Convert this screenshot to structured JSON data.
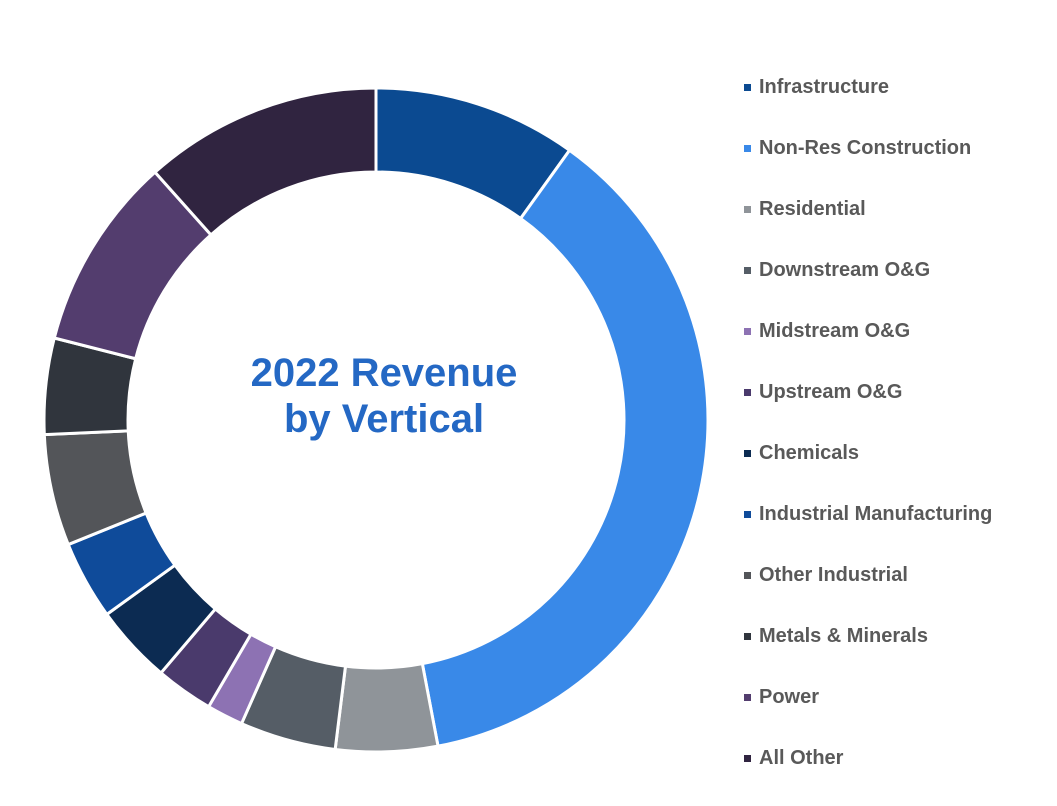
{
  "chart_data": {
    "type": "pie",
    "variant": "donut",
    "title": "2022 Revenue by Vertical",
    "title_lines": [
      "2022 Revenue",
      "by Vertical"
    ],
    "legend_position": "right",
    "categories": [
      "Infrastructure",
      "Non-Res Construction",
      "Residential",
      "Downstream O&G",
      "Midstream O&G",
      "Upstream O&G",
      "Chemicals",
      "Industrial Manufacturing",
      "Other Industrial",
      "Metals & Minerals",
      "Power",
      "All Other"
    ],
    "values": [
      10.6,
      39.7,
      5.3,
      5.0,
      1.9,
      3.0,
      4.1,
      4.1,
      5.8,
      5.0,
      10.1,
      12.4
    ],
    "unit": "percent (estimated)",
    "colors": [
      "#0b4a91",
      "#3989e8",
      "#8f9499",
      "#555d66",
      "#8d72b3",
      "#4a3a6c",
      "#0c2b52",
      "#0f4b9a",
      "#535559",
      "#30353d",
      "#533d6e",
      "#302440"
    ]
  }
}
